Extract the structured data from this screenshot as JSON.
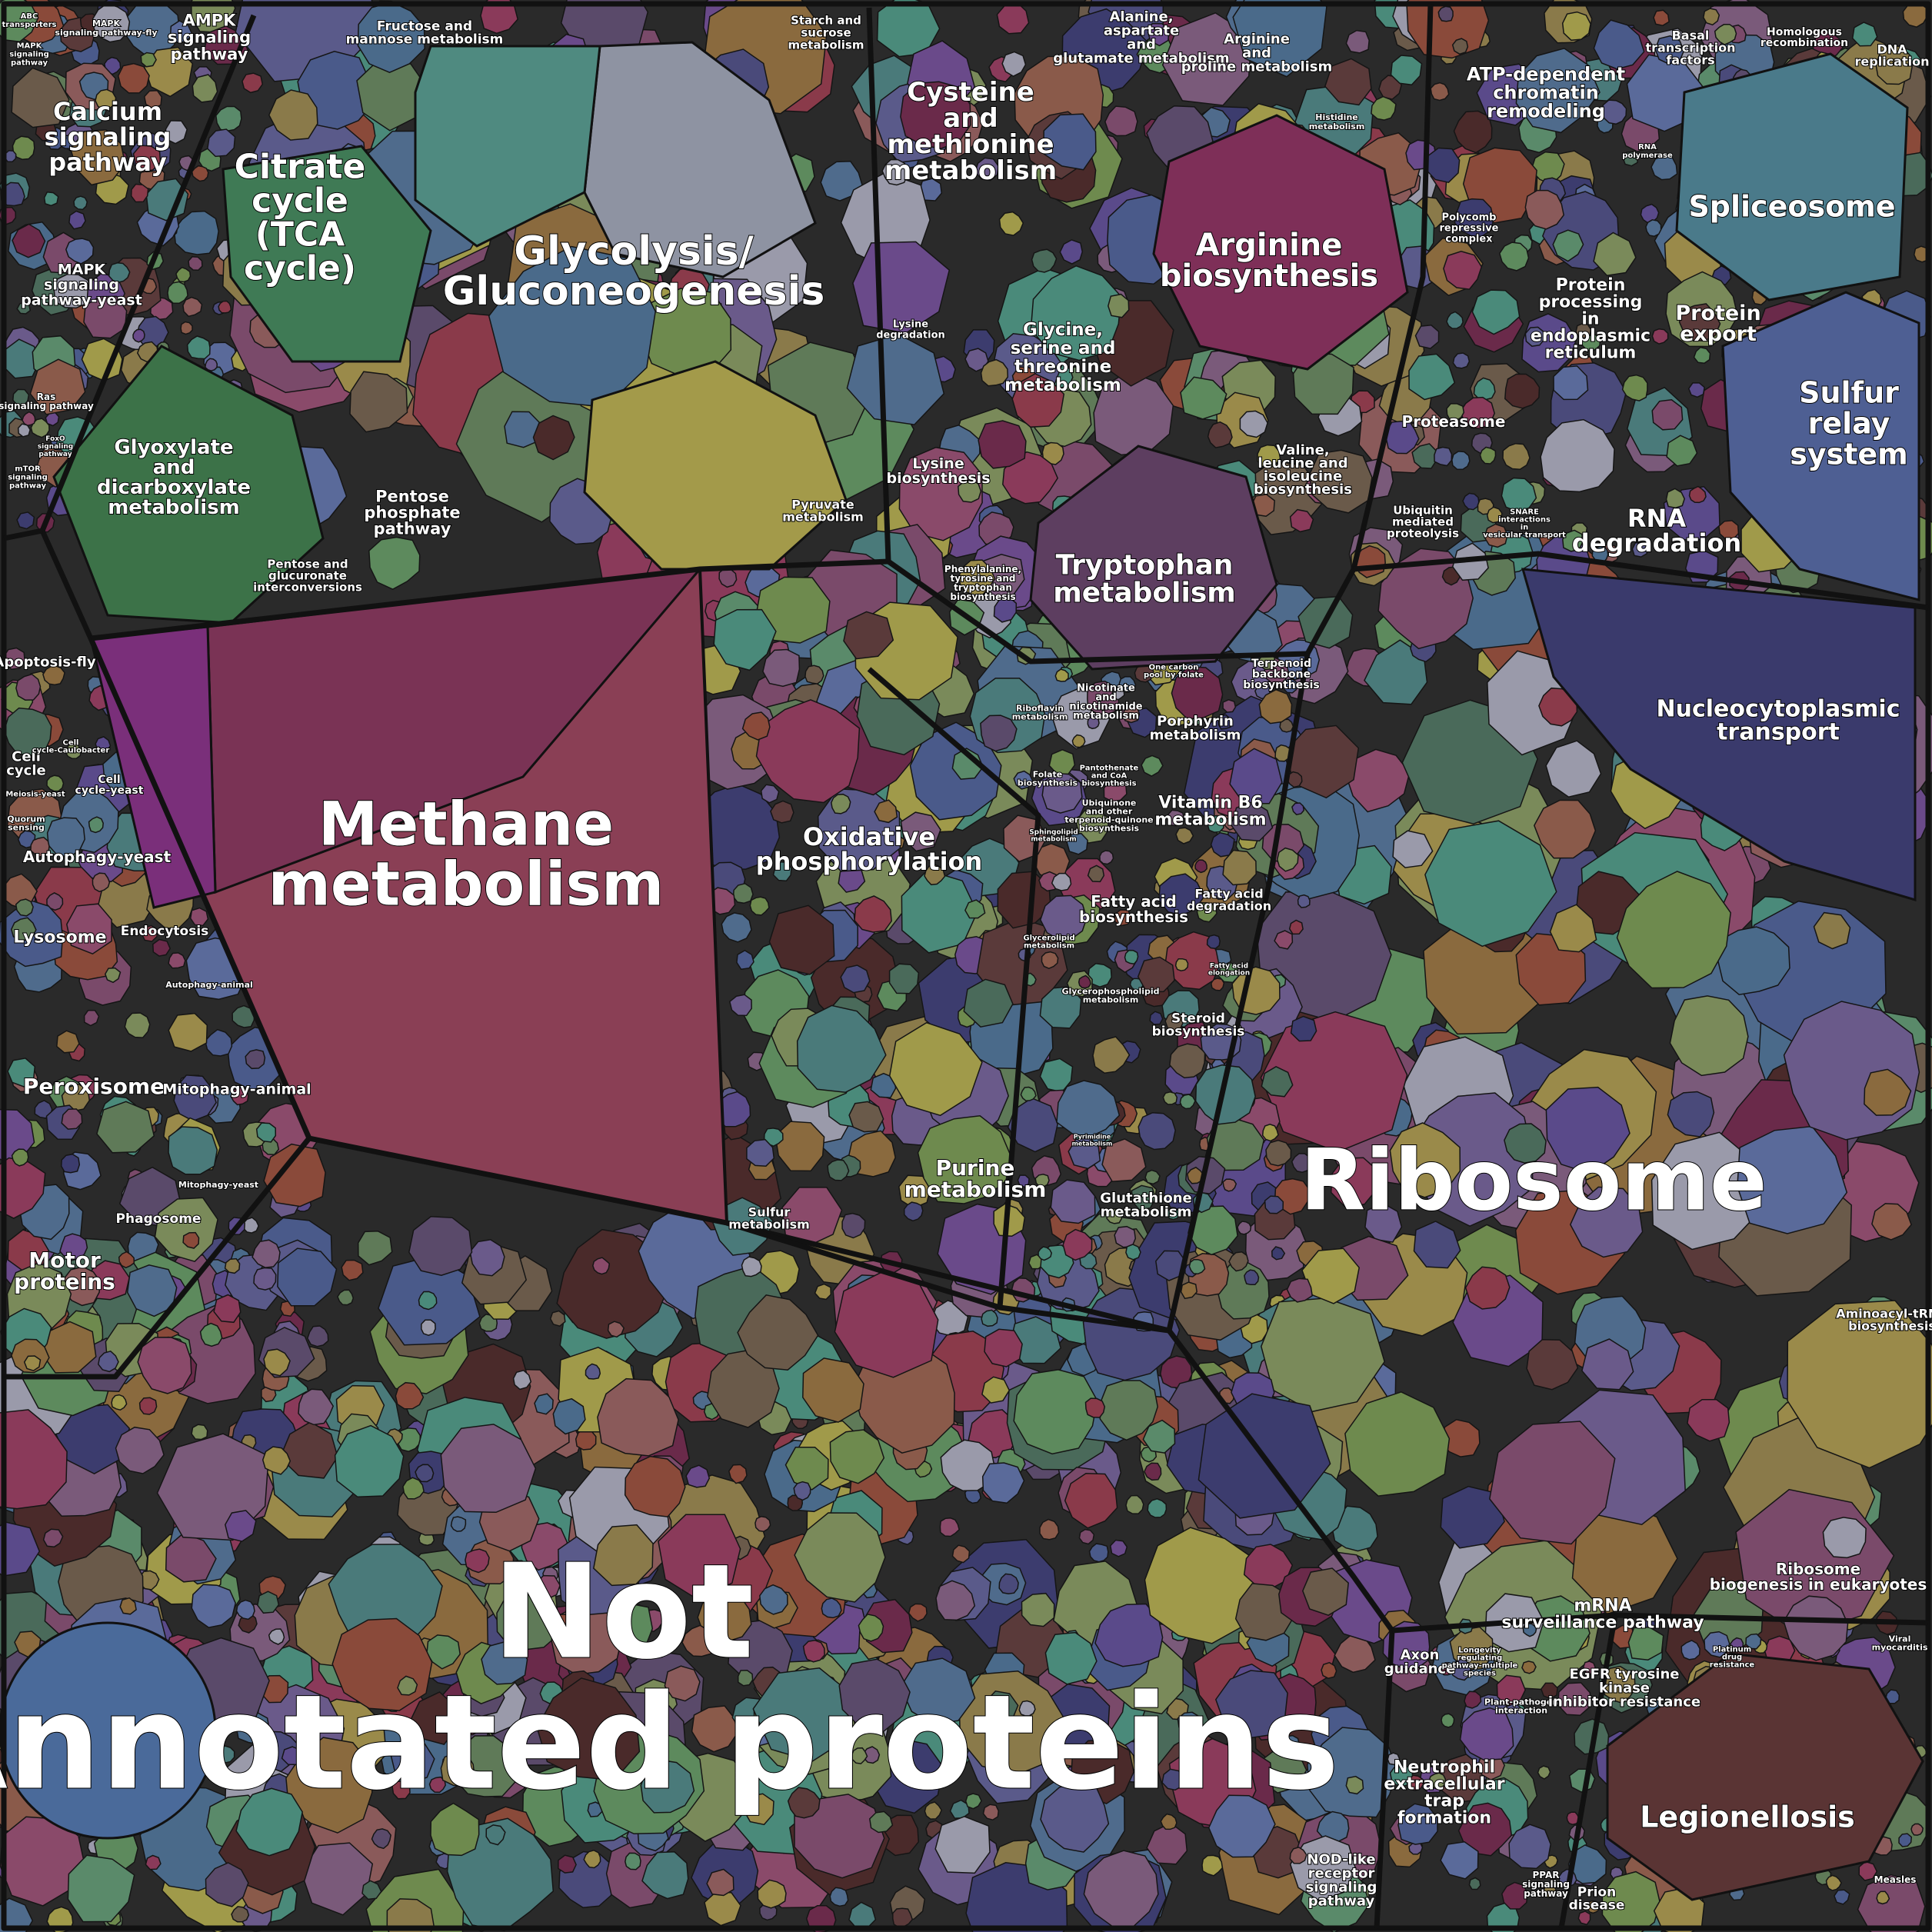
{
  "regions": [
    {
      "id": "not-annotated",
      "color": "#6a5a6e",
      "cells": [
        "#5f7a58",
        "#8a6a3e",
        "#4f6b8c",
        "#7a4a6a",
        "#6e8a4e",
        "#5a5a8a",
        "#8a5a5a",
        "#4a7a7a",
        "#9a8a4a",
        "#6a4a8a"
      ]
    },
    {
      "id": "ribosome",
      "color": "#5a6a78",
      "cells": [
        "#5d8a5d",
        "#4a6a8a",
        "#7a5a7a",
        "#8a7a4a",
        "#5a8a6a",
        "#6a5a8a",
        "#8a5a4a",
        "#4a8a7a",
        "#7a8a5a",
        "#5a4a6a"
      ]
    },
    {
      "id": "methane",
      "color": "#7a3a5a",
      "cells": [
        "#8a3a4a",
        "#6a2a4a",
        "#8a4a3a"
      ]
    },
    {
      "id": "glycolysis",
      "color": "#6a7a6a",
      "cells": [
        "#9a9aaa",
        "#7a8a5a",
        "#a09a4a",
        "#4a8a7a",
        "#8a4a6a",
        "#5a4a8a"
      ]
    },
    {
      "id": "arginine",
      "color": "#7a3a5a",
      "cells": [
        "#8a3a5a",
        "#6a5a4a",
        "#4a6a5a"
      ]
    },
    {
      "id": "nucleo",
      "color": "#3c3c6e",
      "cells": [
        "#3c3c6e",
        "#4a4a7a"
      ]
    },
    {
      "id": "sulfur",
      "color": "#4a5a8a",
      "cells": [
        "#4a5a8a",
        "#5a6a9a"
      ]
    },
    {
      "id": "legion",
      "color": "#5a3a3a",
      "cells": [
        "#5a3a3a",
        "#4a2a2a"
      ]
    }
  ],
  "labels": {
    "abc_transporters": "ABC transporters",
    "mapk_fly": "MAPK signaling pathway-fly",
    "ampk": "AMPK signaling pathway",
    "mapk_plant": "MAPK signaling pathway",
    "calcium": "Calcium signaling pathway",
    "mapk_yeast": "MAPK signaling pathway-yeast",
    "ras": "Ras signaling pathway",
    "foxo": "FoxO signaling pathway",
    "mtor": "mTOR signaling pathway",
    "fructose": "Fructose and mannose metabolism",
    "starch": "Starch and sucrose metabolism",
    "citrate": "Citrate cycle (TCA cycle)",
    "glycolysis": "Glycolysis/ Gluconeogenesis",
    "glyoxylate": "Glyoxylate and dicarboxylate metabolism",
    "pentose_phosphate": "Pentose phosphate pathway",
    "pentose_glucuronate": "Pentose and glucuronate interconversions",
    "pyruvate": "Pyruvate metabolism",
    "cysteine": "Cysteine and methionine metabolism",
    "alanine": "Alanine, aspartate and glutamate metabolism",
    "arginine_proline": "Arginine and proline metabolism",
    "arginine_bio": "Arginine biosynthesis",
    "lysine_deg": "Lysine degradation",
    "glycine": "Glycine, serine and threonine metabolism",
    "lysine_bio": "Lysine biosynthesis",
    "histidine": "Histidine metabolism",
    "valine": "Valine, leucine and isoleucine biosynthesis",
    "phenylalanine": "Phenylalanine, tyrosine and tryptophan biosynthesis",
    "tryptophan": "Tryptophan metabolism",
    "atp_chromatin": "ATP-dependent chromatin remodeling",
    "basal_tf": "Basal transcription factors",
    "homologous": "Homologous recombination",
    "dna_rep": "DNA replication",
    "rna_polymerase": "RNA polymerase",
    "spliceosome": "Spliceosome",
    "polycomb": "Polycomb repressive complex",
    "protein_er": "Protein processing in endoplasmic reticulum",
    "protein_export": "Protein export",
    "sulfur_relay": "Sulfur relay system",
    "proteasome": "Proteasome",
    "rna_degradation": "RNA degradation",
    "ubiquitin": "Ubiquitin mediated proteolysis",
    "snare": "SNARE interactions in vesicular transport",
    "apoptosis_fly": "Apoptosis-fly",
    "cell_cycle": "Cell cycle",
    "cell_cycle_caulo": "Cell cycle-Caulobacter",
    "cell_cycle_yeast": "Cell cycle-yeast",
    "meiosis_yeast": "Meiosis-yeast",
    "quorum": "Quorum sensing",
    "autophagy_yeast": "Autophagy-yeast",
    "lysosome": "Lysosome",
    "endocytosis": "Endocytosis",
    "autophagy_animal": "Autophagy-animal",
    "peroxisome": "Peroxisome",
    "mitophagy_animal": "Mitophagy-animal",
    "mitophagy_yeast": "Mitophagy-yeast",
    "phagosome": "Phagosome",
    "motor": "Motor proteins",
    "methane": "Methane metabolism",
    "oxidative": "Oxidative phosphorylation",
    "sulfur_met": "Sulfur metabolism",
    "purine": "Purine metabolism",
    "riboflavin": "Riboflavin metabolism",
    "nicotinate": "Nicotinate and nicotinamide metabolism",
    "one_carbon": "One carbon pool by folate",
    "porphyrin": "Porphyrin metabolism",
    "terpenoid": "Terpenoid backbone biosynthesis",
    "folate": "Folate biosynthesis",
    "pantothenate": "Pantothenate and CoA biosynthesis",
    "ubiquinone": "Ubiquinone and other terpenoid-quinone biosynthesis",
    "vitamin_b6": "Vitamin B6 metabolism",
    "sphingolipid": "Sphingolipid metabolism",
    "fatty_bio": "Fatty acid biosynthesis",
    "fatty_deg": "Fatty acid degradation",
    "glycerolipid": "Glycerolipid metabolism",
    "glycerophospholipid": "Glycerophospholipid metabolism",
    "fatty_elong": "Fatty acid elongation",
    "steroid": "Steroid biosynthesis",
    "pyrimidine": "Pyrimidine metabolism",
    "glutathione": "Glutathione metabolism",
    "nucleo": "Nucleocytoplasmic transport",
    "ribosome": "Ribosome",
    "aminoacyl": "Aminoacyl-tRNA biosynthesis",
    "ribosome_bio": "Ribosome biogenesis in eukaryotes",
    "mrna": "mRNA surveillance pathway",
    "not_annotated": "Not Annotated proteins",
    "axon": "Axon guidance",
    "longevity": "Longevity regulating pathway-multiple species",
    "plant_pathogen": "Plant-pathogen interaction",
    "egfr": "EGFR tyrosine kinase inhibitor resistance",
    "platinum": "Platinum drug resistance",
    "viral_myo": "Viral myocarditis",
    "neutrophil": "Neutrophil extracellular trap formation",
    "legionellosis": "Legionellosis",
    "nod": "NOD-like receptor signaling pathway",
    "ppar": "PPAR signaling pathway",
    "prion": "Prion disease",
    "measles": "Measles"
  }
}
